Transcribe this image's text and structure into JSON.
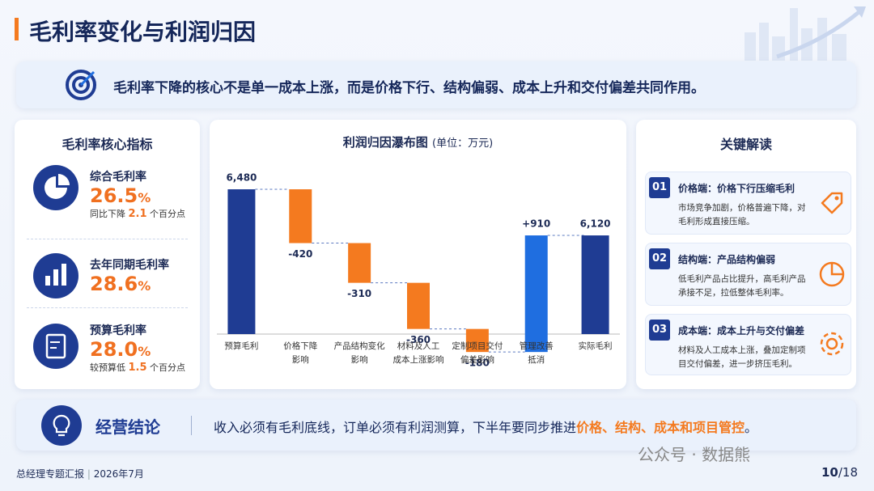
{
  "header": {
    "title": "毛利率变化与利润归因"
  },
  "banner": {
    "text": "毛利率下降的核心不是单一成本上涨，而是价格下行、结构偏弱、成本上升和交付偏差共同作用。"
  },
  "metrics": {
    "title": "毛利率核心指标",
    "items": [
      {
        "name": "综合毛利率",
        "value": "26.5",
        "unit": "%",
        "note_prefix": "同比下降",
        "note_value": "2.1",
        "note_suffix": "个百分点"
      },
      {
        "name": "去年同期毛利率",
        "value": "28.6",
        "unit": "%"
      },
      {
        "name": "预算毛利率",
        "value": "28.0",
        "unit": "%",
        "note_prefix": "较预算低",
        "note_value": "1.5",
        "note_suffix": "个百分点"
      }
    ]
  },
  "chart_data": {
    "type": "waterfall",
    "title": "利润归因瀑布图",
    "subtitle": "(单位：万元)",
    "categories": [
      "预算毛利",
      "价格下降\n影响",
      "产品结构变化\n影响",
      "材料及人工\n成本上涨影响",
      "定制项目交付\n偏差影响",
      "管理改善\n抵消",
      "实际毛利"
    ],
    "values": [
      6480,
      -420,
      -310,
      -360,
      -180,
      910,
      6120
    ],
    "value_labels": [
      "6,480",
      "-420",
      "-310",
      "-360",
      "-180",
      "+910",
      "6,120"
    ],
    "colors": {
      "total": "#1f3c93",
      "decrease": "#f47a1f",
      "increase": "#1f6ee0"
    },
    "ylim": [
      5350,
      6600
    ]
  },
  "insights": {
    "title": "关键解读",
    "items": [
      {
        "num": "01",
        "title": "价格端：价格下行压缩毛利",
        "body": "市场竞争加剧，价格普遍下降，对毛利形成直接压缩。"
      },
      {
        "num": "02",
        "title": "结构端：产品结构偏弱",
        "body": "低毛利产品占比提升，高毛利产品承接不足，拉低整体毛利率。"
      },
      {
        "num": "03",
        "title": "成本端：成本上升与交付偏差",
        "body": "材料及人工成本上涨，叠加定制项目交付偏差，进一步挤压毛利。"
      }
    ]
  },
  "conclusion": {
    "label": "经营结论",
    "text": "收入必须有毛利底线，订单必须有利润测算，下半年要同步推进",
    "highlight": "价格、结构、成本和项目管控",
    "end": "。"
  },
  "footer": {
    "report": "总经理专题汇报",
    "date": "2026年7月",
    "page": "10",
    "total": "/18",
    "watermark": "公众号 · 数据熊"
  }
}
